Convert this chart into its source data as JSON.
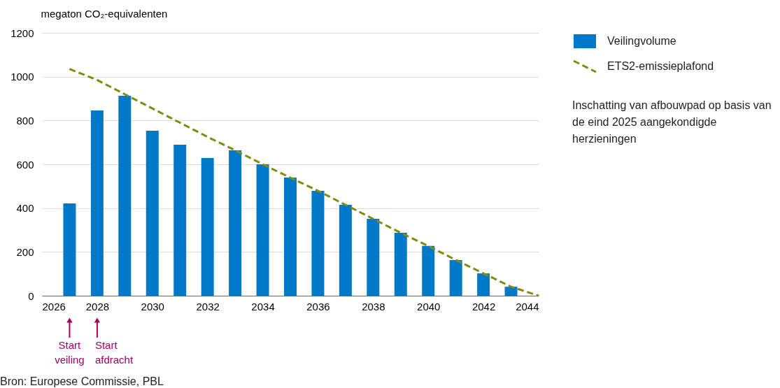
{
  "chart_data": {
    "type": "bar",
    "ylabel": "megaton CO₂-equivalenten",
    "x": [
      2027,
      2028,
      2029,
      2030,
      2031,
      2032,
      2033,
      2034,
      2035,
      2036,
      2037,
      2038,
      2039,
      2040,
      2041,
      2042,
      2043
    ],
    "series": [
      {
        "name": "Veilingvolume",
        "color": "#0079c8",
        "values": [
          421,
          846,
          913,
          753,
          689,
          629,
          664,
          600,
          539,
          479,
          415,
          351,
          287,
          227,
          163,
          102,
          41
        ]
      },
      {
        "name": "ETS2-emissieplafond",
        "type": "line",
        "color": "#7f8c0f",
        "line_style": "dashed",
        "x": [
          2027,
          2028,
          2029,
          2030,
          2031,
          2032,
          2033,
          2034,
          2035,
          2036,
          2037,
          2038,
          2039,
          2040,
          2041,
          2042,
          2043,
          2044
        ],
        "values": [
          1035,
          985,
          920,
          855,
          790,
          725,
          664,
          600,
          539,
          479,
          415,
          351,
          287,
          227,
          163,
          102,
          41,
          0
        ]
      }
    ],
    "xlim": [
      2026,
      2044
    ],
    "xticks": [
      2026,
      2028,
      2030,
      2032,
      2034,
      2036,
      2038,
      2040,
      2042,
      2044
    ],
    "ylim": [
      0,
      1200
    ],
    "yticks": [
      0,
      200,
      400,
      600,
      800,
      1000,
      1200
    ],
    "grid": "y",
    "legend": "top right",
    "annotations": [
      "Start veiling",
      "Start afdracht",
      "Inschatting van afbouwpad op basis van de eind 2025 aangekondigde herzieningen",
      "Bron: Europese Commissie, PBL"
    ]
  }
}
